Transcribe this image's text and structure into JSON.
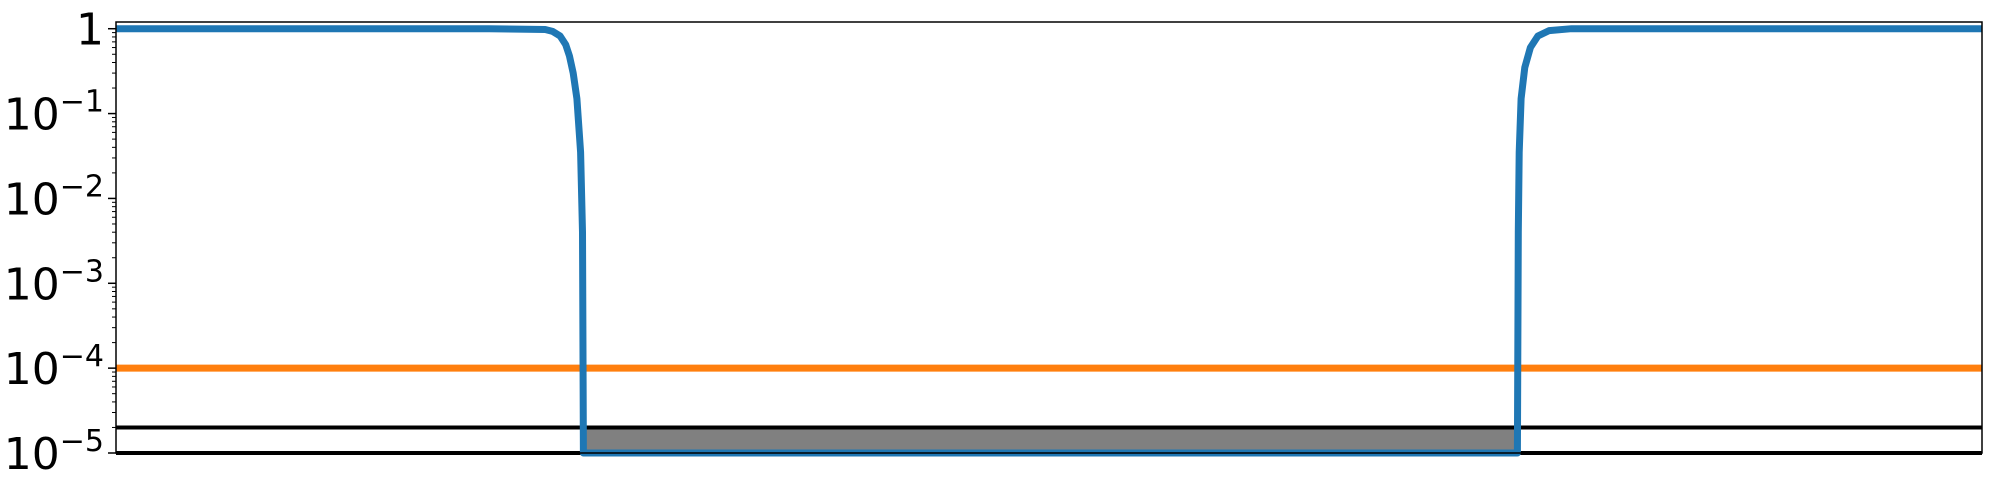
{
  "chart_data": {
    "type": "line",
    "yscale": "log",
    "ylim": [
      1e-05,
      1.2
    ],
    "xlim": [
      0,
      1
    ],
    "grid": false,
    "legend": "none",
    "title": "",
    "xlabel": "",
    "ylabel": "",
    "ytick_labels": [
      {
        "value": 1,
        "base": "1",
        "exp": ""
      },
      {
        "value": 0.1,
        "base": "10",
        "exp": "−1"
      },
      {
        "value": 0.01,
        "base": "10",
        "exp": "−2"
      },
      {
        "value": 0.001,
        "base": "10",
        "exp": "−3"
      },
      {
        "value": 0.0001,
        "base": "10",
        "exp": "−4"
      },
      {
        "value": 1e-05,
        "base": "10",
        "exp": "−5"
      }
    ],
    "series": [
      {
        "color": "#1f77b4",
        "x": [
          0,
          0.2,
          0.23,
          0.234,
          0.238,
          0.241,
          0.243,
          0.245,
          0.247,
          0.249,
          0.25,
          0.2505,
          0.751,
          0.7515,
          0.752,
          0.753,
          0.755,
          0.758,
          0.762,
          0.768,
          0.78,
          0.82,
          1
        ],
        "y": [
          1,
          1,
          0.98,
          0.93,
          0.82,
          0.65,
          0.48,
          0.3,
          0.15,
          0.035,
          0.004,
          1e-05,
          1e-05,
          0.004,
          0.035,
          0.15,
          0.35,
          0.6,
          0.82,
          0.95,
          1,
          1,
          1
        ]
      },
      {
        "color": "#ff7f0e",
        "x": [
          0,
          1
        ],
        "y": [
          0.0001,
          0.0001
        ]
      }
    ],
    "threshold_lines": [
      {
        "color": "#000000",
        "y": 2e-05
      },
      {
        "color": "#000000",
        "y": 1e-05
      }
    ],
    "shaded_region": {
      "color": "#808080",
      "x": [
        0.2505,
        0.751
      ],
      "y": [
        1e-05,
        2e-05
      ]
    }
  }
}
